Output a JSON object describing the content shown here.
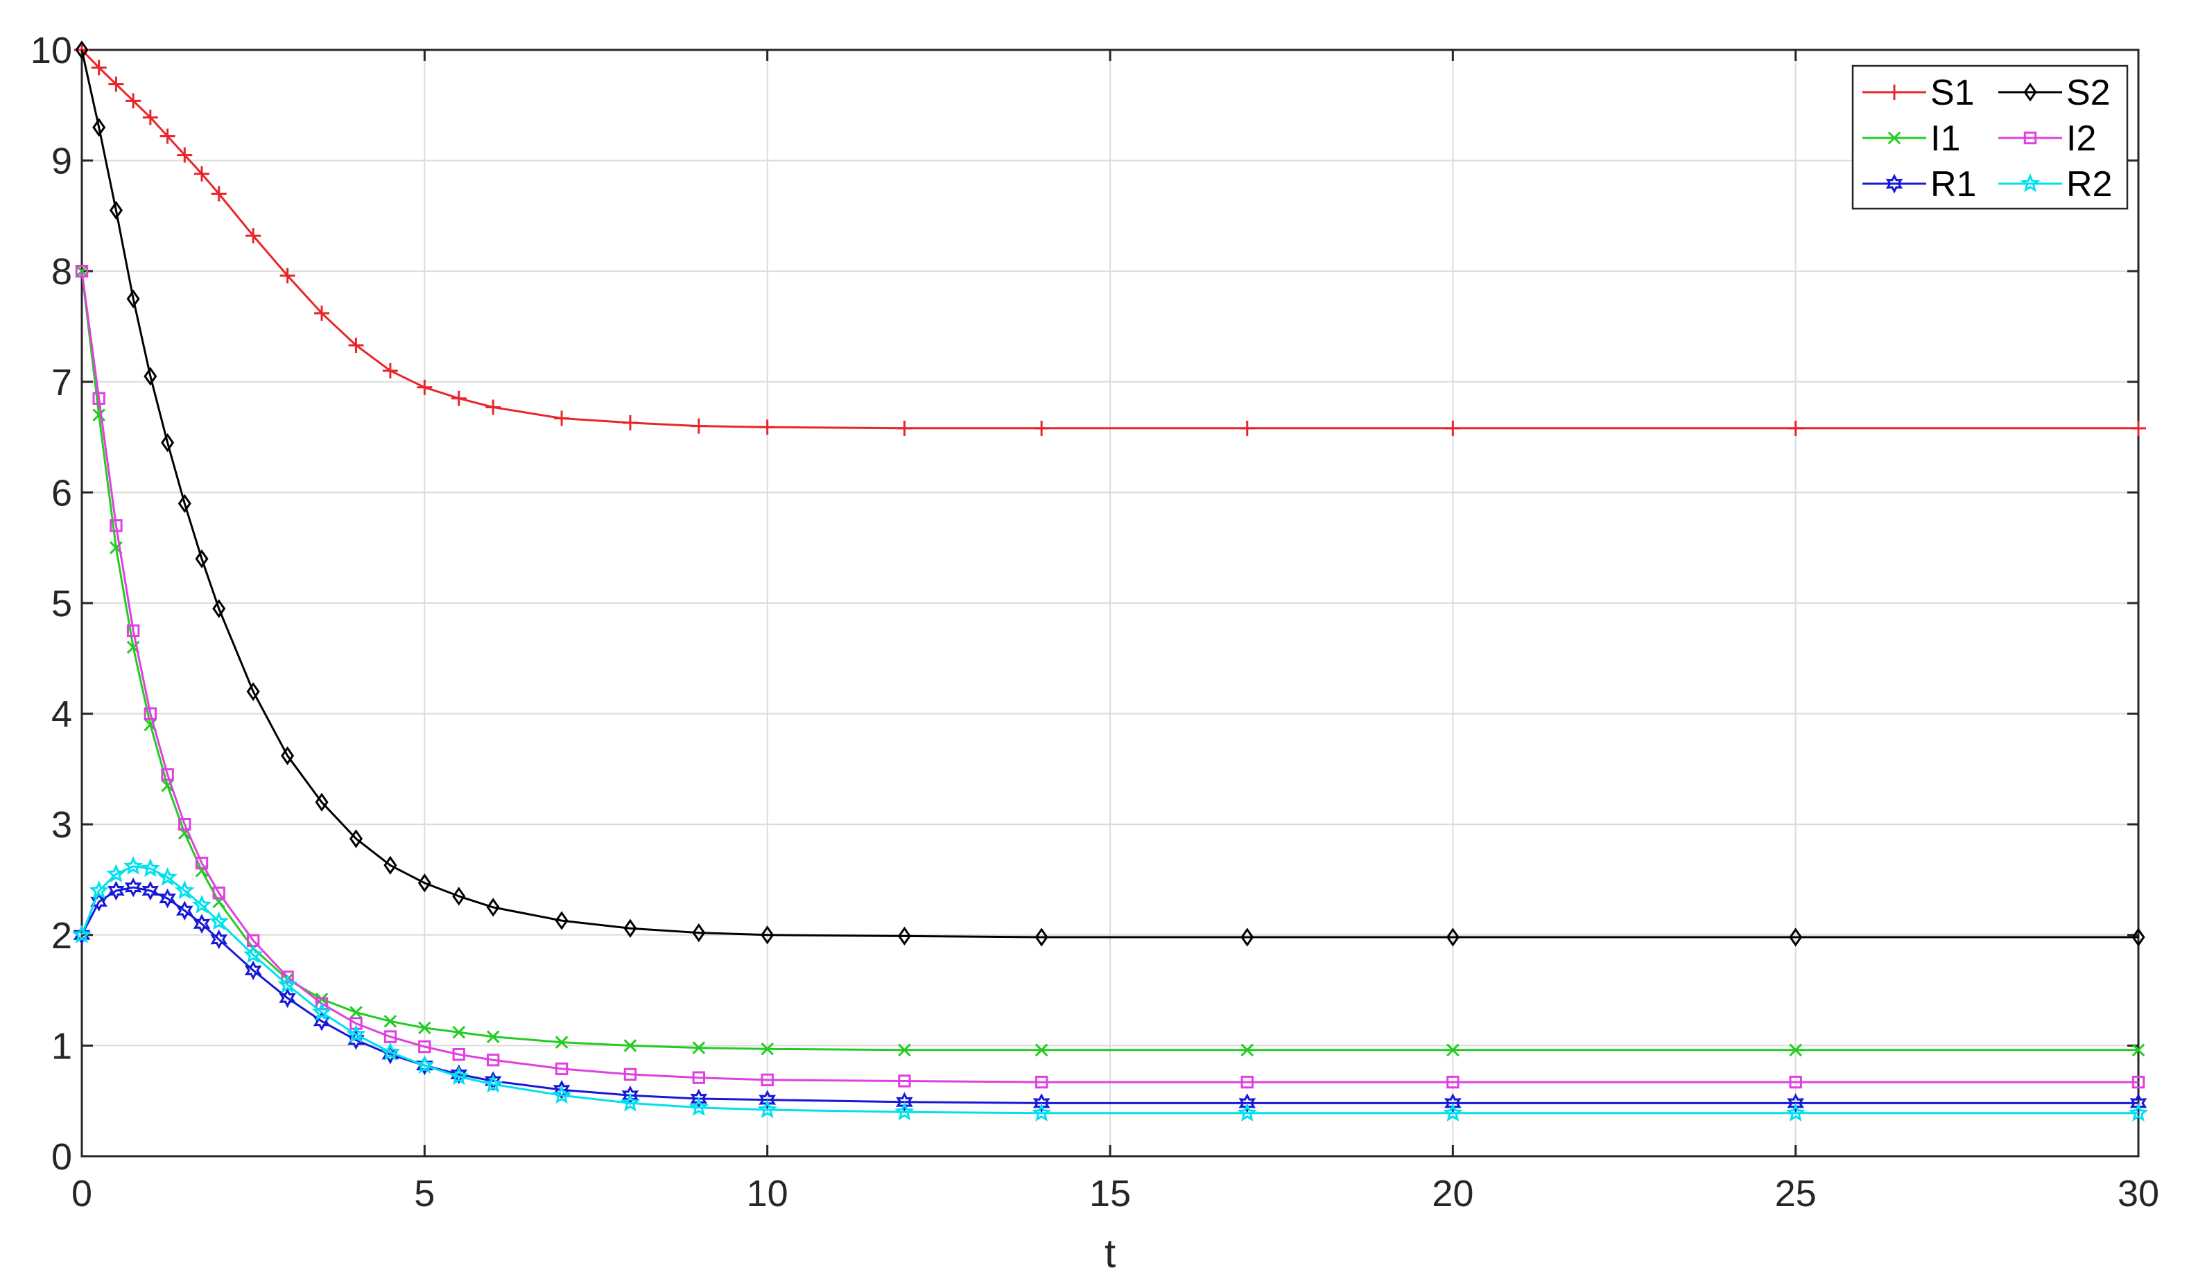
{
  "chart_data": {
    "type": "line",
    "xlabel": "t",
    "ylabel": "",
    "title": "",
    "xlim": [
      0,
      30
    ],
    "ylim": [
      0,
      10
    ],
    "xticks": [
      "0",
      "5",
      "10",
      "15",
      "20",
      "25",
      "30"
    ],
    "yticks": [
      "0",
      "1",
      "2",
      "3",
      "4",
      "5",
      "6",
      "7",
      "8",
      "9",
      "10"
    ],
    "grid": true,
    "legend_position": "top-right",
    "x": [
      0,
      0.25,
      0.5,
      0.75,
      1,
      1.25,
      1.5,
      1.75,
      2,
      2.5,
      3,
      3.5,
      4,
      4.5,
      5,
      5.5,
      6,
      7,
      8,
      9,
      10,
      12,
      14,
      17,
      20,
      25,
      30
    ],
    "series": [
      {
        "name": "S1",
        "color": "#e8262a",
        "marker": "plus",
        "values": [
          10.0,
          9.84,
          9.69,
          9.54,
          9.39,
          9.22,
          9.05,
          8.88,
          8.7,
          8.32,
          7.96,
          7.62,
          7.33,
          7.1,
          6.95,
          6.85,
          6.77,
          6.67,
          6.63,
          6.6,
          6.59,
          6.58,
          6.58,
          6.58,
          6.58,
          6.58,
          6.58
        ]
      },
      {
        "name": "S2",
        "color": "#000000",
        "marker": "diamond",
        "values": [
          10.0,
          9.3,
          8.55,
          7.75,
          7.05,
          6.45,
          5.9,
          5.4,
          4.95,
          4.2,
          3.62,
          3.2,
          2.87,
          2.63,
          2.47,
          2.35,
          2.25,
          2.13,
          2.06,
          2.02,
          2.0,
          1.99,
          1.98,
          1.98,
          1.98,
          1.98,
          1.98
        ]
      },
      {
        "name": "I1",
        "color": "#22cc22",
        "marker": "cross",
        "values": [
          8.0,
          6.7,
          5.5,
          4.6,
          3.9,
          3.35,
          2.92,
          2.58,
          2.3,
          1.88,
          1.6,
          1.42,
          1.3,
          1.22,
          1.16,
          1.12,
          1.08,
          1.03,
          1.0,
          0.98,
          0.97,
          0.96,
          0.96,
          0.96,
          0.96,
          0.96,
          0.96
        ]
      },
      {
        "name": "I2",
        "color": "#e040e0",
        "marker": "square",
        "values": [
          8.0,
          6.85,
          5.7,
          4.75,
          4.0,
          3.45,
          3.0,
          2.65,
          2.38,
          1.95,
          1.62,
          1.38,
          1.2,
          1.08,
          0.99,
          0.92,
          0.87,
          0.79,
          0.74,
          0.71,
          0.69,
          0.68,
          0.67,
          0.67,
          0.67,
          0.67,
          0.67
        ]
      },
      {
        "name": "R1",
        "color": "#1818d8",
        "marker": "hexagram",
        "values": [
          2.0,
          2.3,
          2.4,
          2.43,
          2.4,
          2.33,
          2.22,
          2.1,
          1.96,
          1.68,
          1.43,
          1.22,
          1.05,
          0.92,
          0.82,
          0.74,
          0.68,
          0.6,
          0.55,
          0.52,
          0.51,
          0.49,
          0.48,
          0.48,
          0.48,
          0.48,
          0.48
        ]
      },
      {
        "name": "R2",
        "color": "#00e0ee",
        "marker": "pentagram",
        "values": [
          2.0,
          2.4,
          2.55,
          2.62,
          2.6,
          2.52,
          2.4,
          2.27,
          2.12,
          1.82,
          1.55,
          1.3,
          1.1,
          0.94,
          0.82,
          0.72,
          0.65,
          0.55,
          0.48,
          0.44,
          0.42,
          0.4,
          0.39,
          0.39,
          0.39,
          0.39,
          0.39
        ]
      }
    ]
  }
}
